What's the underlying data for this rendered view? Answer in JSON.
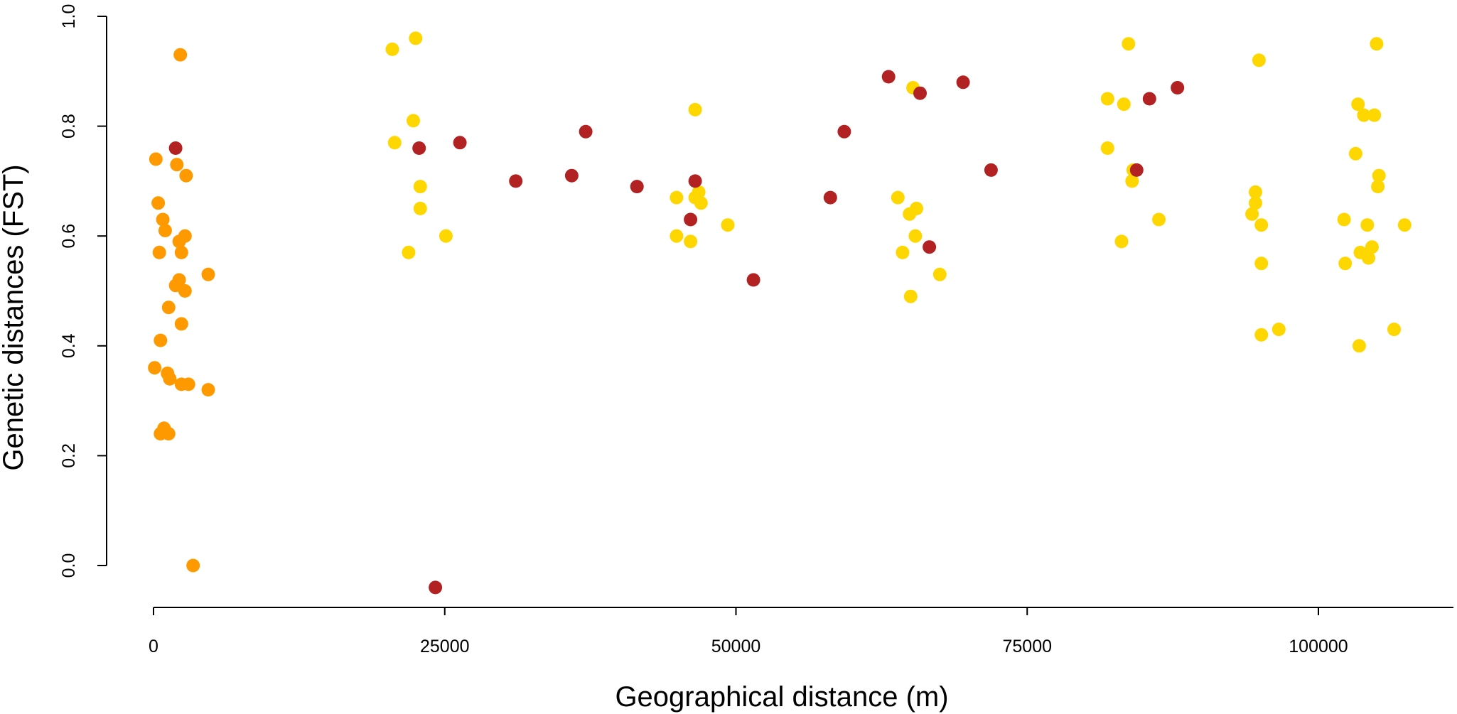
{
  "chart_data": {
    "type": "scatter",
    "title": "",
    "xlabel": "Geographical distance (m)",
    "ylabel": "Genetic distances (FST)",
    "xlim": [
      0,
      110000
    ],
    "ylim": [
      -0.04,
      1.0
    ],
    "xticks": [
      "0",
      "25000",
      "50000",
      "75000",
      "100000"
    ],
    "yticks": [
      "0.0",
      "0.2",
      "0.4",
      "0.6",
      "0.8",
      "1.0"
    ],
    "grid": false,
    "legend": "none",
    "colors": {
      "orange": "#FF9900",
      "yellow": "#FFD700",
      "red": "#B22222"
    },
    "series": [
      {
        "color": "orange",
        "points": [
          [
            2300,
            0.93
          ],
          [
            200,
            0.74
          ],
          [
            2000,
            0.73
          ],
          [
            2800,
            0.71
          ],
          [
            400,
            0.66
          ],
          [
            800,
            0.63
          ],
          [
            1000,
            0.61
          ],
          [
            2700,
            0.6
          ],
          [
            2200,
            0.59
          ],
          [
            500,
            0.57
          ],
          [
            2400,
            0.57
          ],
          [
            4700,
            0.53
          ],
          [
            2200,
            0.52
          ],
          [
            1900,
            0.51
          ],
          [
            2700,
            0.5
          ],
          [
            1300,
            0.47
          ],
          [
            2400,
            0.44
          ],
          [
            600,
            0.41
          ],
          [
            100,
            0.36
          ],
          [
            1200,
            0.35
          ],
          [
            1400,
            0.34
          ],
          [
            2400,
            0.33
          ],
          [
            3000,
            0.33
          ],
          [
            4700,
            0.32
          ],
          [
            900,
            0.25
          ],
          [
            600,
            0.24
          ],
          [
            1300,
            0.24
          ],
          [
            3400,
            0.0
          ]
        ]
      },
      {
        "color": "yellow",
        "points": [
          [
            22500,
            0.96
          ],
          [
            20500,
            0.94
          ],
          [
            22300,
            0.81
          ],
          [
            20700,
            0.77
          ],
          [
            22900,
            0.69
          ],
          [
            22900,
            0.65
          ],
          [
            25100,
            0.6
          ],
          [
            21900,
            0.57
          ],
          [
            46500,
            0.83
          ],
          [
            46800,
            0.68
          ],
          [
            44900,
            0.67
          ],
          [
            46500,
            0.67
          ],
          [
            47000,
            0.66
          ],
          [
            49300,
            0.62
          ],
          [
            44900,
            0.6
          ],
          [
            46100,
            0.59
          ],
          [
            65200,
            0.87
          ],
          [
            63900,
            0.67
          ],
          [
            65500,
            0.65
          ],
          [
            64900,
            0.64
          ],
          [
            65400,
            0.6
          ],
          [
            64300,
            0.57
          ],
          [
            67500,
            0.53
          ],
          [
            65000,
            0.49
          ],
          [
            83700,
            0.95
          ],
          [
            81900,
            0.85
          ],
          [
            83300,
            0.84
          ],
          [
            81900,
            0.76
          ],
          [
            84100,
            0.72
          ],
          [
            84000,
            0.7
          ],
          [
            86300,
            0.63
          ],
          [
            83100,
            0.59
          ],
          [
            94900,
            0.92
          ],
          [
            94600,
            0.68
          ],
          [
            94600,
            0.66
          ],
          [
            94300,
            0.64
          ],
          [
            95100,
            0.62
          ],
          [
            95100,
            0.55
          ],
          [
            96600,
            0.43
          ],
          [
            95100,
            0.42
          ],
          [
            105000,
            0.95
          ],
          [
            103400,
            0.84
          ],
          [
            103900,
            0.82
          ],
          [
            104800,
            0.82
          ],
          [
            103200,
            0.75
          ],
          [
            105200,
            0.71
          ],
          [
            105100,
            0.69
          ],
          [
            102200,
            0.63
          ],
          [
            107400,
            0.62
          ],
          [
            104200,
            0.62
          ],
          [
            104600,
            0.58
          ],
          [
            103600,
            0.57
          ],
          [
            104300,
            0.56
          ],
          [
            102300,
            0.55
          ],
          [
            106500,
            0.43
          ],
          [
            103500,
            0.4
          ]
        ]
      },
      {
        "color": "red",
        "points": [
          [
            1900,
            0.76
          ],
          [
            22800,
            0.76
          ],
          [
            26300,
            0.77
          ],
          [
            24200,
            -0.04
          ],
          [
            31100,
            0.7
          ],
          [
            35900,
            0.71
          ],
          [
            37100,
            0.79
          ],
          [
            41500,
            0.69
          ],
          [
            46500,
            0.7
          ],
          [
            46100,
            0.63
          ],
          [
            51500,
            0.52
          ],
          [
            58100,
            0.67
          ],
          [
            59300,
            0.79
          ],
          [
            63100,
            0.89
          ],
          [
            65800,
            0.86
          ],
          [
            66600,
            0.58
          ],
          [
            69500,
            0.88
          ],
          [
            71900,
            0.72
          ],
          [
            84400,
            0.72
          ],
          [
            85500,
            0.85
          ],
          [
            87900,
            0.87
          ]
        ]
      }
    ]
  }
}
